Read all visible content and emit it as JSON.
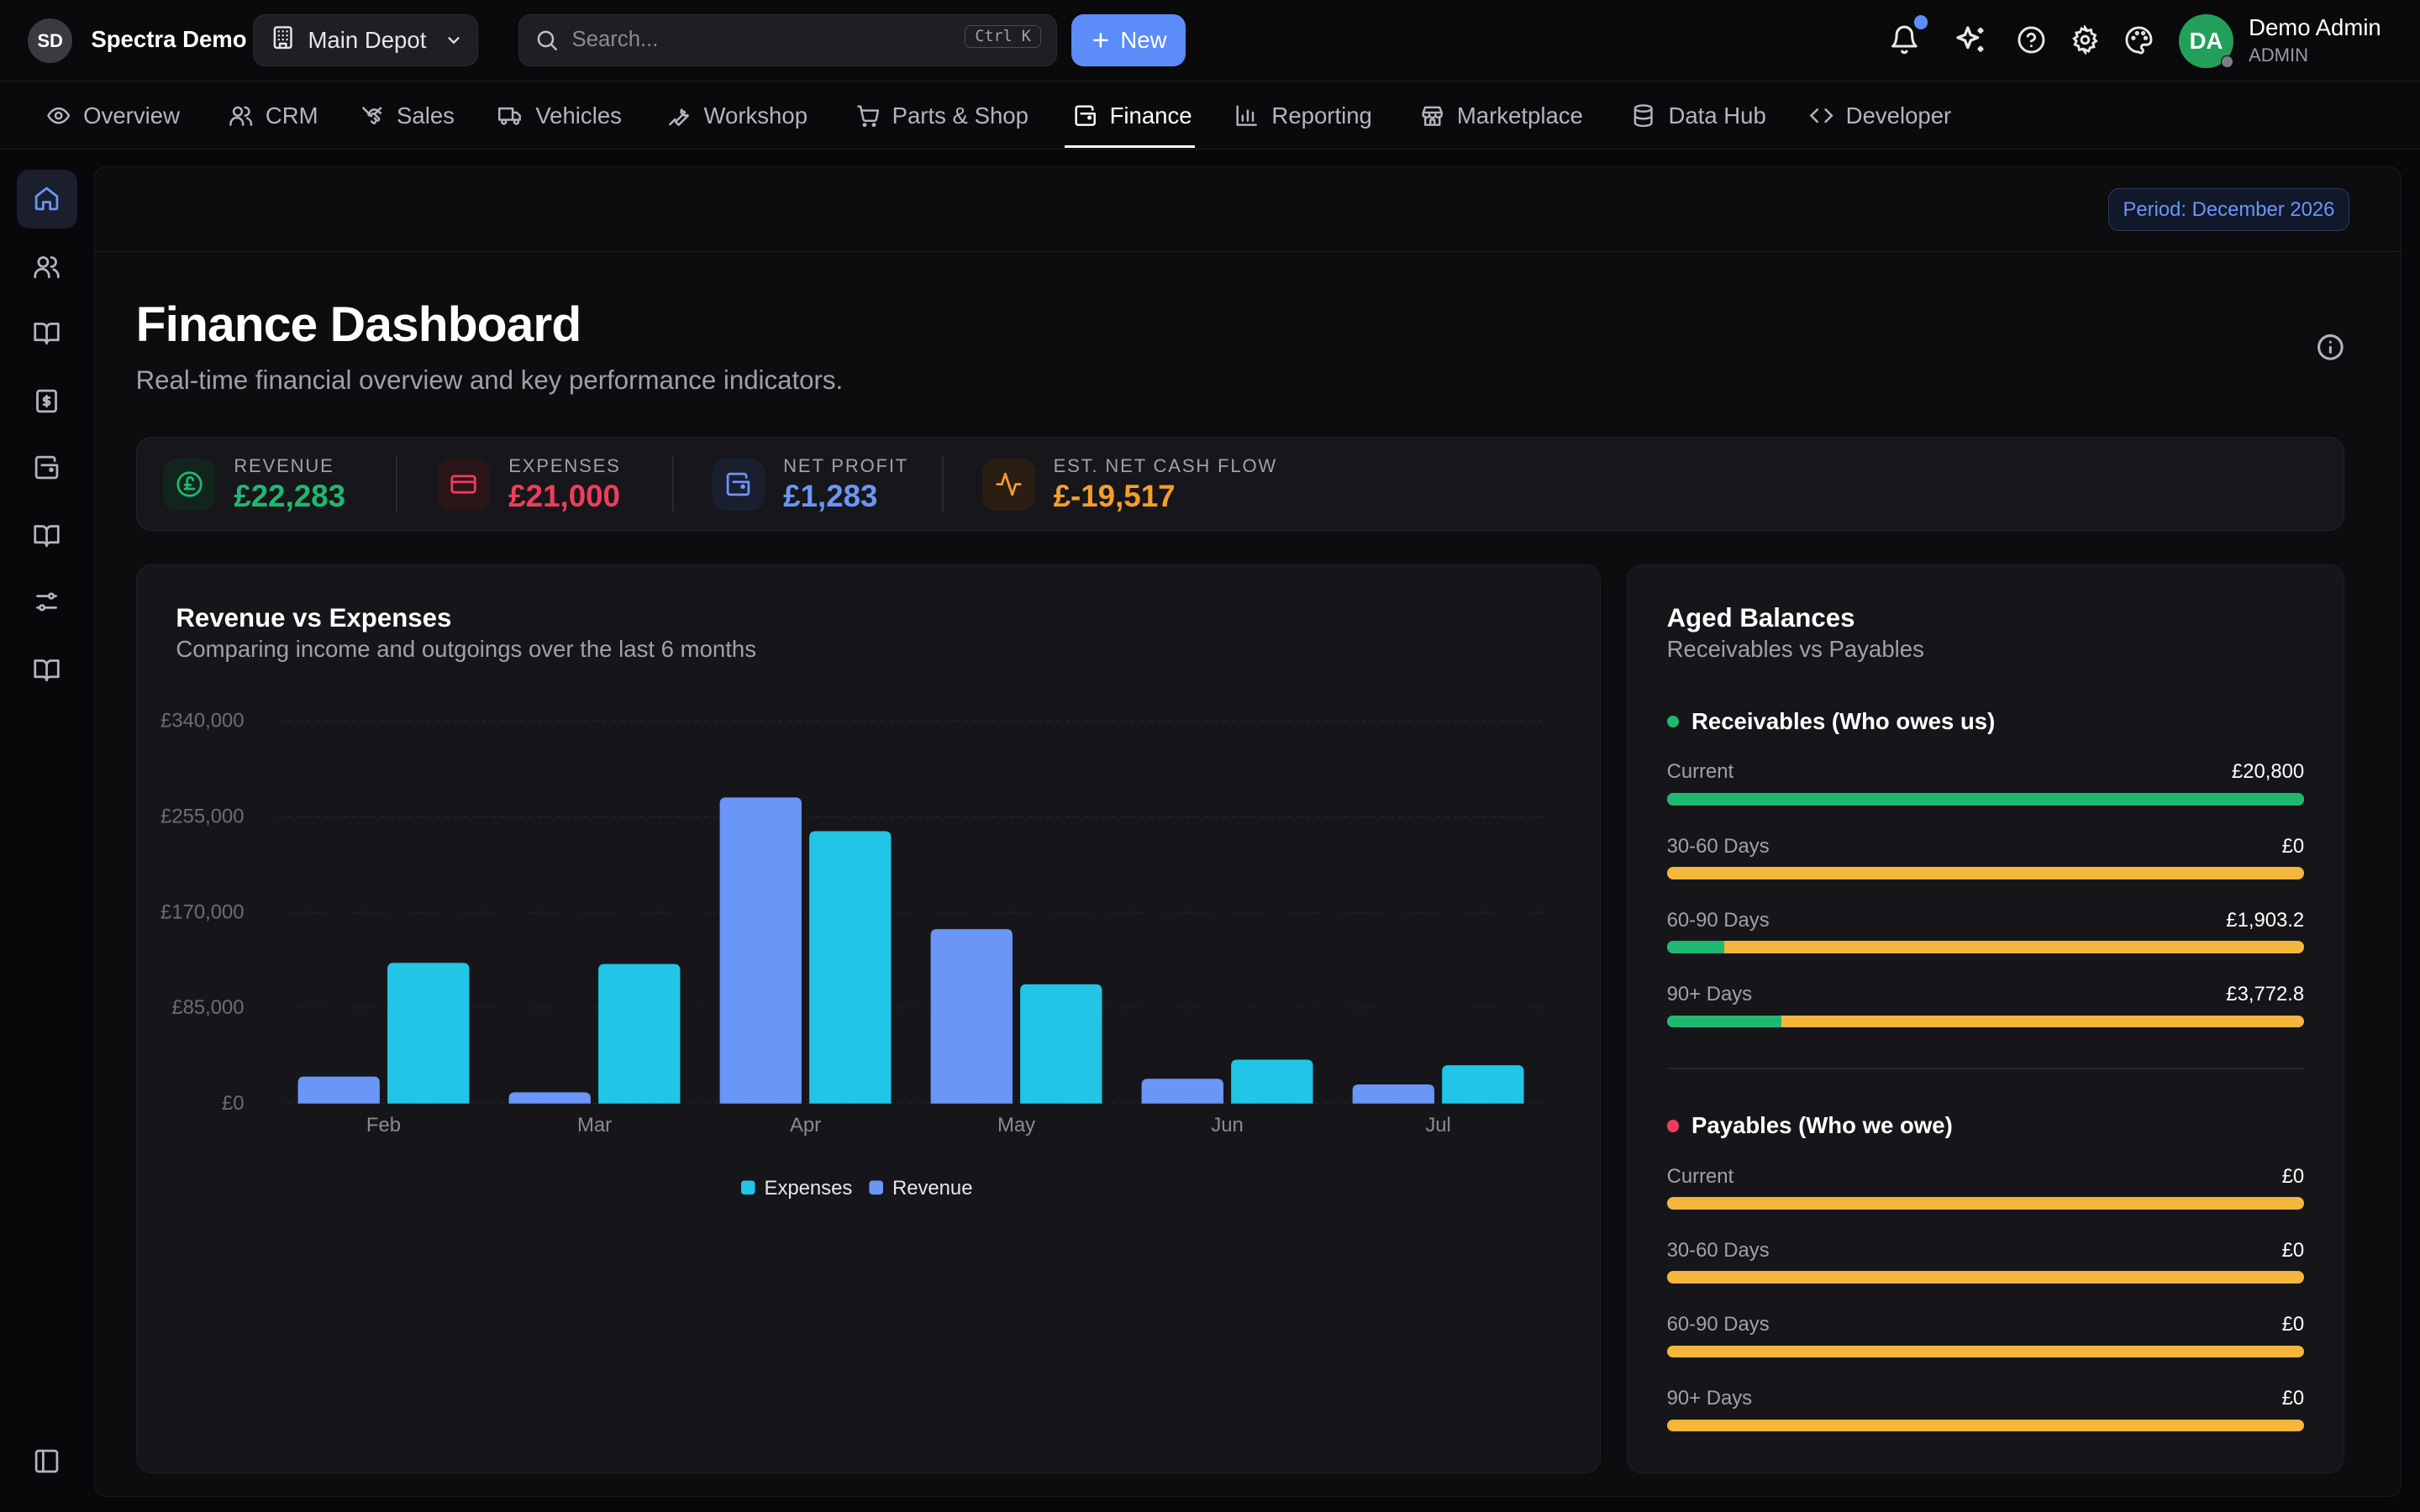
{
  "topbar": {
    "brand_badge": "SD",
    "brand_name": "Spectra Demo",
    "depot": "Main Depot",
    "search_placeholder": "Search...",
    "search_shortcut": "Ctrl K",
    "new_button": "New",
    "user_initials": "DA",
    "user_name": "Demo Admin",
    "user_role": "ADMIN"
  },
  "nav": {
    "items": [
      {
        "label": "Overview",
        "icon": "eye-icon"
      },
      {
        "label": "CRM",
        "icon": "users-icon"
      },
      {
        "label": "Sales",
        "icon": "handshake-icon"
      },
      {
        "label": "Vehicles",
        "icon": "truck-icon"
      },
      {
        "label": "Workshop",
        "icon": "wrench-icon"
      },
      {
        "label": "Parts & Shop",
        "icon": "cart-icon"
      },
      {
        "label": "Finance",
        "icon": "wallet-icon",
        "active": true
      },
      {
        "label": "Reporting",
        "icon": "bar-chart-icon"
      },
      {
        "label": "Marketplace",
        "icon": "store-icon"
      },
      {
        "label": "Data Hub",
        "icon": "database-icon"
      },
      {
        "label": "Developer",
        "icon": "code-icon"
      }
    ]
  },
  "page": {
    "period": "Period: December 2026",
    "title": "Finance Dashboard",
    "subtitle": "Real-time financial overview and key performance indicators."
  },
  "kpis": [
    {
      "label": "REVENUE",
      "value": "£22,283",
      "color": "#1fb871"
    },
    {
      "label": "EXPENSES",
      "value": "£21,000",
      "color": "#ef3d5b"
    },
    {
      "label": "NET PROFIT",
      "value": "£1,283",
      "color": "#6a96f8"
    },
    {
      "label": "EST. NET CASH FLOW",
      "value": "£-19,517",
      "color": "#f59e2b"
    }
  ],
  "revenue_card": {
    "title": "Revenue vs Expenses",
    "subtitle": "Comparing income and outgoings over the last 6 months"
  },
  "chart_data": {
    "type": "bar",
    "categories": [
      "Feb",
      "Mar",
      "Apr",
      "May",
      "Jun",
      "Jul"
    ],
    "series": [
      {
        "name": "Revenue",
        "color": "#6a96f8",
        "values": [
          24000,
          10000,
          272000,
          155000,
          22000,
          17000
        ]
      },
      {
        "name": "Expenses",
        "color": "#22c5e5",
        "values": [
          125000,
          124000,
          242000,
          106000,
          39000,
          34000
        ]
      }
    ],
    "y_ticks": [
      "£0",
      "£85,000",
      "£170,000",
      "£255,000",
      "£340,000"
    ],
    "ylim": [
      0,
      340000
    ],
    "legend": [
      {
        "name": "Expenses",
        "color": "#22c5e5"
      },
      {
        "name": "Revenue",
        "color": "#6a96f8"
      }
    ],
    "legend_position": "bottom-center"
  },
  "aged": {
    "title": "Aged Balances",
    "subtitle": "Receivables vs Payables",
    "receivables": {
      "title": "Receivables (Who owes us)",
      "rows": [
        {
          "label": "Current",
          "value": "£20,800",
          "fill": 1.0
        },
        {
          "label": "30-60 Days",
          "value": "£0",
          "fill": 0
        },
        {
          "label": "60-90 Days",
          "value": "£1,903.2",
          "fill": 0.09
        },
        {
          "label": "90+ Days",
          "value": "£3,772.8",
          "fill": 0.18
        }
      ]
    },
    "payables": {
      "title": "Payables (Who we owe)",
      "rows": [
        {
          "label": "Current",
          "value": "£0",
          "fill": 0
        },
        {
          "label": "30-60 Days",
          "value": "£0",
          "fill": 0
        },
        {
          "label": "60-90 Days",
          "value": "£0",
          "fill": 0
        },
        {
          "label": "90+ Days",
          "value": "£0",
          "fill": 0
        }
      ]
    }
  }
}
